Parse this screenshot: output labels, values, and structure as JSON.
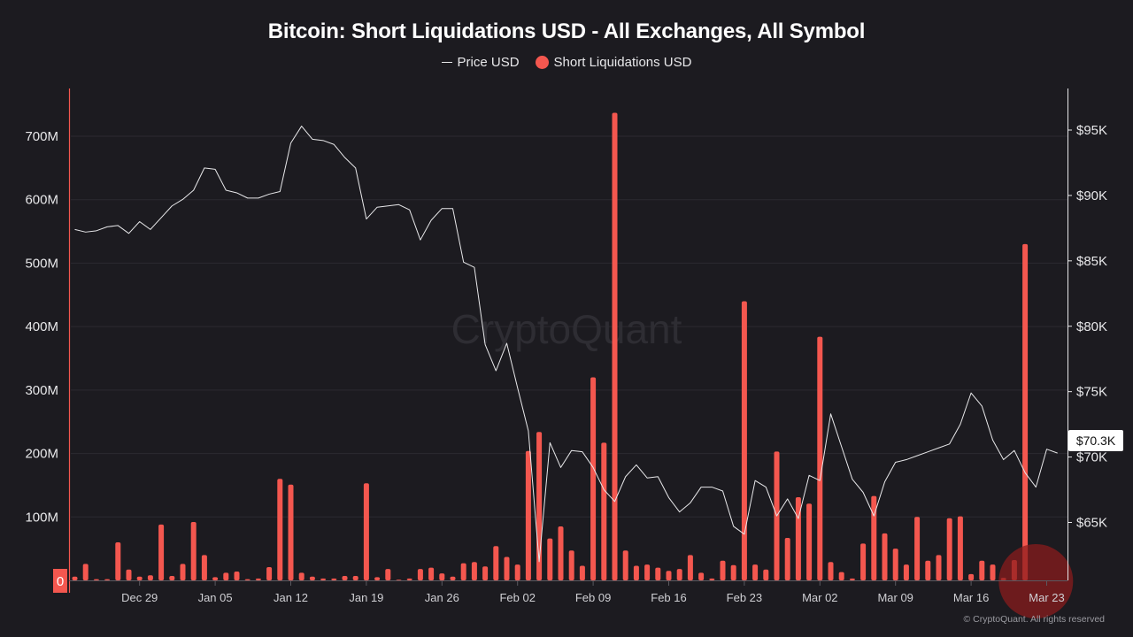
{
  "title": "Bitcoin: Short Liquidations USD - All Exchanges, All Symbol",
  "legend": {
    "price_label": "Price USD",
    "liq_label": "Short Liquidations USD"
  },
  "watermark": "CryptoQuant",
  "copyright": "© CryptoQuant. All rights reserved",
  "current_price_label": "$70.3K",
  "zero_label": "0",
  "colors": {
    "background": "#1c1b20",
    "bar": "#f4574f",
    "price_line": "#e8e8ea",
    "highlight": "#8e1c1c"
  },
  "chart_data": {
    "type": "bar",
    "x": [
      "Dec 23",
      "Dec 24",
      "Dec 25",
      "Dec 26",
      "Dec 27",
      "Dec 28",
      "Dec 29",
      "Dec 30",
      "Dec 31",
      "Jan 01",
      "Jan 02",
      "Jan 03",
      "Jan 04",
      "Jan 05",
      "Jan 06",
      "Jan 07",
      "Jan 08",
      "Jan 09",
      "Jan 10",
      "Jan 11",
      "Jan 12",
      "Jan 13",
      "Jan 14",
      "Jan 15",
      "Jan 16",
      "Jan 17",
      "Jan 18",
      "Jan 19",
      "Jan 20",
      "Jan 21",
      "Jan 22",
      "Jan 23",
      "Jan 24",
      "Jan 25",
      "Jan 26",
      "Jan 27",
      "Jan 28",
      "Jan 29",
      "Jan 30",
      "Jan 31",
      "Feb 01",
      "Feb 02",
      "Feb 03",
      "Feb 04",
      "Feb 05",
      "Feb 06",
      "Feb 07",
      "Feb 08",
      "Feb 09",
      "Feb 10",
      "Feb 11",
      "Feb 12",
      "Feb 13",
      "Feb 14",
      "Feb 15",
      "Feb 16",
      "Feb 17",
      "Feb 18",
      "Feb 19",
      "Feb 20",
      "Feb 21",
      "Feb 22",
      "Feb 23",
      "Feb 24",
      "Feb 25",
      "Feb 26",
      "Feb 27",
      "Feb 28",
      "Mar 01",
      "Mar 02",
      "Mar 03",
      "Mar 04",
      "Mar 05",
      "Mar 06",
      "Mar 07",
      "Mar 08",
      "Mar 09",
      "Mar 10",
      "Mar 11",
      "Mar 12",
      "Mar 13",
      "Mar 14",
      "Mar 15",
      "Mar 16",
      "Mar 17",
      "Mar 18",
      "Mar 19",
      "Mar 20",
      "Mar 21",
      "Mar 22",
      "Mar 23",
      "Mar 24"
    ],
    "series": [
      {
        "name": "Short Liquidations USD",
        "axis": "left",
        "values": [
          6,
          26,
          2,
          2,
          60,
          17,
          6,
          8,
          88,
          7,
          26,
          92,
          40,
          5,
          12,
          14,
          2,
          3,
          21,
          160,
          151,
          12,
          6,
          3,
          3,
          7,
          7,
          153,
          5,
          18,
          1,
          3,
          18,
          20,
          11,
          6,
          27,
          29,
          22,
          54,
          37,
          25,
          204,
          234,
          66,
          85,
          47,
          23,
          320,
          217,
          737,
          47,
          23,
          25,
          20,
          15,
          18,
          40,
          12,
          3,
          31,
          24,
          440,
          25,
          17,
          203,
          67,
          131,
          121,
          384,
          29,
          13,
          3,
          58,
          133,
          74,
          50,
          25,
          100,
          31,
          40,
          98,
          101,
          10,
          31,
          25,
          4,
          32,
          530,
          0,
          0,
          0
        ]
      },
      {
        "name": "Price USD",
        "axis": "right",
        "values": [
          87400,
          87200,
          87300,
          87600,
          87700,
          87100,
          88000,
          87400,
          88300,
          89200,
          89700,
          90400,
          92100,
          92000,
          90400,
          90200,
          89800,
          89800,
          90100,
          90300,
          94000,
          95300,
          94300,
          94200,
          93900,
          92900,
          92100,
          88200,
          89100,
          89200,
          89300,
          88900,
          86600,
          88100,
          89000,
          89000,
          84900,
          84500,
          78600,
          76600,
          78700,
          75300,
          72000,
          62000,
          71100,
          69200,
          70500,
          70400,
          69200,
          67500,
          66600,
          68500,
          69400,
          68400,
          68500,
          66900,
          65800,
          66500,
          67700,
          67700,
          67400,
          64700,
          64100,
          68200,
          67700,
          65500,
          66800,
          65300,
          68600,
          68200,
          73300,
          70800,
          68300,
          67300,
          65500,
          68100,
          69600,
          69800,
          70100,
          70400,
          70700,
          71000,
          72500,
          74900,
          73900,
          71300,
          69800,
          70500,
          68800,
          67700,
          70600,
          70300
        ]
      }
    ],
    "x_ticks": [
      "Dec 29",
      "Jan 05",
      "Jan 12",
      "Jan 19",
      "Jan 26",
      "Feb 02",
      "Feb 09",
      "Feb 16",
      "Feb 23",
      "Mar 02",
      "Mar 09",
      "Mar 16",
      "Mar 23"
    ],
    "y_left": {
      "ticks": [
        "0",
        "100M",
        "200M",
        "300M",
        "400M",
        "500M",
        "600M",
        "700M"
      ],
      "range": [
        0,
        770
      ]
    },
    "y_right": {
      "ticks": [
        "$65K",
        "$70K",
        "$75K",
        "$80K",
        "$85K",
        "$90K",
        "$95K"
      ],
      "range": [
        60500,
        98000
      ]
    },
    "highlight": {
      "x": "Mar 22",
      "series": "Short Liquidations USD"
    },
    "grid": true,
    "legend_position": "top-center"
  }
}
